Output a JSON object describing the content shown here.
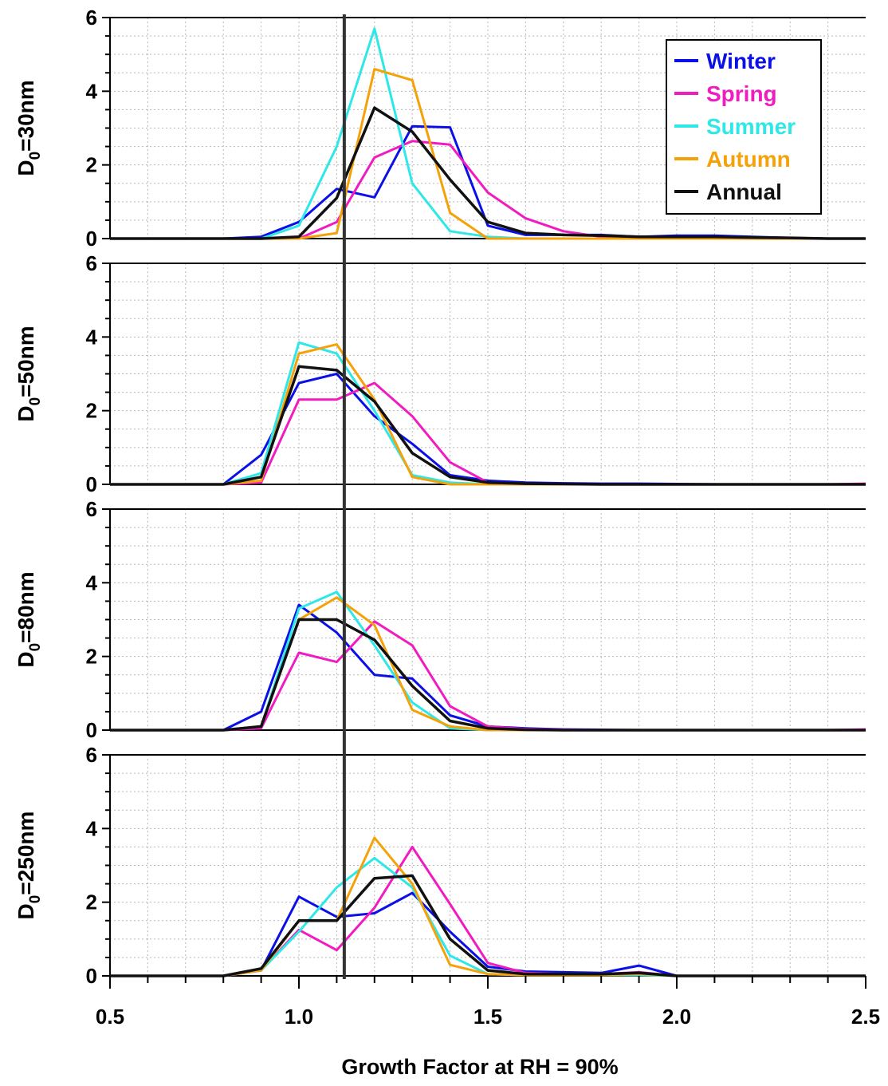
{
  "figure": {
    "xlabel": "Growth Factor at RH = 90%",
    "xlim": [
      0.5,
      2.5
    ],
    "xticks": [
      "0.5",
      "1.0",
      "1.5",
      "2.0",
      "2.5"
    ],
    "reference_line_x": 1.12,
    "colors": {
      "Winter": "#0a10e6",
      "Spring": "#f01cc0",
      "Summer": "#2ee8e8",
      "Autumn": "#f5a20a",
      "Annual": "#111111"
    },
    "legend": {
      "placement": "top-right of first panel",
      "entries": [
        "Winter",
        "Spring",
        "Summer",
        "Autumn",
        "Annual"
      ]
    }
  },
  "chart_data": [
    {
      "type": "line",
      "ylabel_main": "D",
      "ylabel_sub": "0",
      "ylabel_rest": "=30nm",
      "ylim": [
        0,
        6
      ],
      "yticks": [
        "0",
        "2",
        "4",
        "6"
      ],
      "x": [
        0.5,
        0.6,
        0.7,
        0.8,
        0.9,
        1.0,
        1.1,
        1.2,
        1.3,
        1.4,
        1.5,
        1.6,
        1.7,
        1.8,
        1.9,
        2.0,
        2.1,
        2.2,
        2.3,
        2.4,
        2.5
      ],
      "series": [
        {
          "name": "Winter",
          "values": [
            0,
            0,
            0,
            0,
            0.05,
            0.45,
            1.35,
            1.12,
            3.05,
            3.02,
            0.35,
            0.1,
            0.1,
            0.1,
            0.05,
            0.08,
            0.08,
            0.05,
            0.02,
            0,
            0
          ]
        },
        {
          "name": "Spring",
          "values": [
            0,
            0,
            0,
            0,
            0,
            0,
            0.45,
            2.2,
            2.65,
            2.55,
            1.25,
            0.55,
            0.2,
            0.05,
            0.02,
            0,
            0,
            0,
            0,
            0,
            0
          ]
        },
        {
          "name": "Summer",
          "values": [
            0,
            0,
            0,
            0,
            0,
            0.35,
            2.5,
            5.7,
            1.5,
            0.2,
            0.05,
            0,
            0,
            0,
            0,
            0,
            0,
            0,
            0,
            0,
            0
          ]
        },
        {
          "name": "Autumn",
          "values": [
            0,
            0,
            0,
            0,
            0,
            0,
            0.15,
            4.6,
            4.3,
            0.7,
            0,
            0,
            0,
            0,
            0,
            0,
            0,
            0,
            0,
            0,
            0
          ]
        },
        {
          "name": "Annual",
          "values": [
            0,
            0,
            0,
            0,
            0,
            0.05,
            1.1,
            3.55,
            2.9,
            1.6,
            0.45,
            0.15,
            0.1,
            0.08,
            0.05,
            0.05,
            0.05,
            0.03,
            0.02,
            0,
            0
          ]
        }
      ]
    },
    {
      "type": "line",
      "ylabel_main": "D",
      "ylabel_sub": "0",
      "ylabel_rest": "=50nm",
      "ylim": [
        0,
        6
      ],
      "yticks": [
        "0",
        "2",
        "4",
        "6"
      ],
      "x": [
        0.5,
        0.6,
        0.7,
        0.8,
        0.9,
        1.0,
        1.1,
        1.2,
        1.3,
        1.4,
        1.5,
        1.6,
        1.7,
        1.8,
        1.9,
        2.0,
        2.1,
        2.2,
        2.3,
        2.4,
        2.5
      ],
      "series": [
        {
          "name": "Winter",
          "values": [
            0,
            0,
            0,
            0,
            0.8,
            2.75,
            3.0,
            1.85,
            1.1,
            0.25,
            0.1,
            0.05,
            0.03,
            0.02,
            0.02,
            0.01,
            0,
            0,
            0,
            0,
            0
          ]
        },
        {
          "name": "Spring",
          "values": [
            0,
            0,
            0,
            0,
            0.05,
            2.3,
            2.3,
            2.75,
            1.85,
            0.6,
            0.05,
            0.02,
            0.01,
            0,
            0,
            0,
            0,
            0,
            0,
            0,
            0.02
          ]
        },
        {
          "name": "Summer",
          "values": [
            0,
            0,
            0,
            0,
            0.3,
            3.85,
            3.55,
            2.0,
            0.25,
            0.05,
            0,
            0,
            0,
            0,
            0,
            0,
            0,
            0,
            0,
            0,
            0
          ]
        },
        {
          "name": "Autumn",
          "values": [
            0,
            0,
            0,
            0,
            0.1,
            3.55,
            3.8,
            2.3,
            0.2,
            0,
            0,
            0,
            0,
            0,
            0,
            0,
            0,
            0,
            0,
            0,
            0
          ]
        },
        {
          "name": "Annual",
          "values": [
            0,
            0,
            0,
            0,
            0.2,
            3.2,
            3.1,
            2.25,
            0.85,
            0.2,
            0.05,
            0.02,
            0.01,
            0,
            0,
            0,
            0,
            0,
            0,
            0,
            0
          ]
        }
      ]
    },
    {
      "type": "line",
      "ylabel_main": "D",
      "ylabel_sub": "0",
      "ylabel_rest": "=80nm",
      "ylim": [
        0,
        6
      ],
      "yticks": [
        "0",
        "2",
        "4",
        "6"
      ],
      "x": [
        0.5,
        0.6,
        0.7,
        0.8,
        0.9,
        1.0,
        1.1,
        1.2,
        1.3,
        1.4,
        1.5,
        1.6,
        1.7,
        1.8,
        1.9,
        2.0,
        2.1,
        2.2,
        2.3,
        2.4,
        2.5
      ],
      "series": [
        {
          "name": "Winter",
          "values": [
            0,
            0,
            0,
            0,
            0.5,
            3.4,
            2.65,
            1.5,
            1.4,
            0.4,
            0.1,
            0.05,
            0.02,
            0.01,
            0,
            0,
            0,
            0,
            0,
            0,
            0
          ]
        },
        {
          "name": "Spring",
          "values": [
            0,
            0,
            0,
            0,
            0.05,
            2.1,
            1.85,
            2.95,
            2.3,
            0.65,
            0.1,
            0.03,
            0.01,
            0,
            0,
            0,
            0,
            0,
            0,
            0,
            0.02
          ]
        },
        {
          "name": "Summer",
          "values": [
            0,
            0,
            0,
            0,
            0.1,
            3.3,
            3.75,
            2.3,
            0.75,
            0.05,
            0,
            0,
            0,
            0,
            0,
            0,
            0,
            0,
            0,
            0,
            0
          ]
        },
        {
          "name": "Autumn",
          "values": [
            0,
            0,
            0,
            0,
            0.1,
            3.0,
            3.6,
            2.85,
            0.55,
            0.1,
            0,
            0,
            0,
            0,
            0,
            0,
            0,
            0,
            0,
            0,
            0
          ]
        },
        {
          "name": "Annual",
          "values": [
            0,
            0,
            0,
            0,
            0.1,
            3.0,
            3.0,
            2.45,
            1.2,
            0.25,
            0.05,
            0.01,
            0,
            0,
            0,
            0,
            0,
            0,
            0,
            0,
            0
          ]
        }
      ]
    },
    {
      "type": "line",
      "ylabel_main": "D",
      "ylabel_sub": "0",
      "ylabel_rest": "=250nm",
      "ylim": [
        0,
        6
      ],
      "yticks": [
        "0",
        "2",
        "4",
        "6"
      ],
      "x": [
        0.5,
        0.6,
        0.7,
        0.8,
        0.9,
        1.0,
        1.1,
        1.2,
        1.3,
        1.4,
        1.5,
        1.6,
        1.7,
        1.8,
        1.9,
        2.0,
        2.1,
        2.2,
        2.3,
        2.4,
        2.5
      ],
      "series": [
        {
          "name": "Winter",
          "values": [
            0,
            0,
            0,
            0,
            0.15,
            2.15,
            1.6,
            1.7,
            2.25,
            1.2,
            0.25,
            0.12,
            0.1,
            0.08,
            0.28,
            0,
            0,
            0,
            0,
            0,
            0
          ]
        },
        {
          "name": "Spring",
          "values": [
            0,
            0,
            0,
            0,
            0.15,
            1.25,
            0.7,
            1.85,
            3.5,
            1.95,
            0.35,
            0.08,
            0.05,
            0.05,
            0.1,
            0,
            0,
            0,
            0,
            0,
            0
          ]
        },
        {
          "name": "Summer",
          "values": [
            0,
            0,
            0,
            0,
            0.15,
            1.2,
            2.4,
            3.2,
            2.4,
            0.55,
            0.05,
            0.02,
            0.02,
            0.02,
            0.02,
            0,
            0,
            0,
            0,
            0,
            0
          ]
        },
        {
          "name": "Autumn",
          "values": [
            0,
            0,
            0,
            0,
            0.15,
            1.5,
            1.5,
            3.75,
            2.5,
            0.3,
            0.05,
            0.02,
            0.02,
            0.02,
            0.05,
            0,
            0,
            0,
            0,
            0,
            0
          ]
        },
        {
          "name": "Annual",
          "values": [
            0,
            0,
            0,
            0,
            0.2,
            1.5,
            1.5,
            2.65,
            2.72,
            1.0,
            0.15,
            0.05,
            0.05,
            0.05,
            0.08,
            0,
            0,
            0,
            0,
            0,
            0
          ]
        }
      ]
    }
  ]
}
